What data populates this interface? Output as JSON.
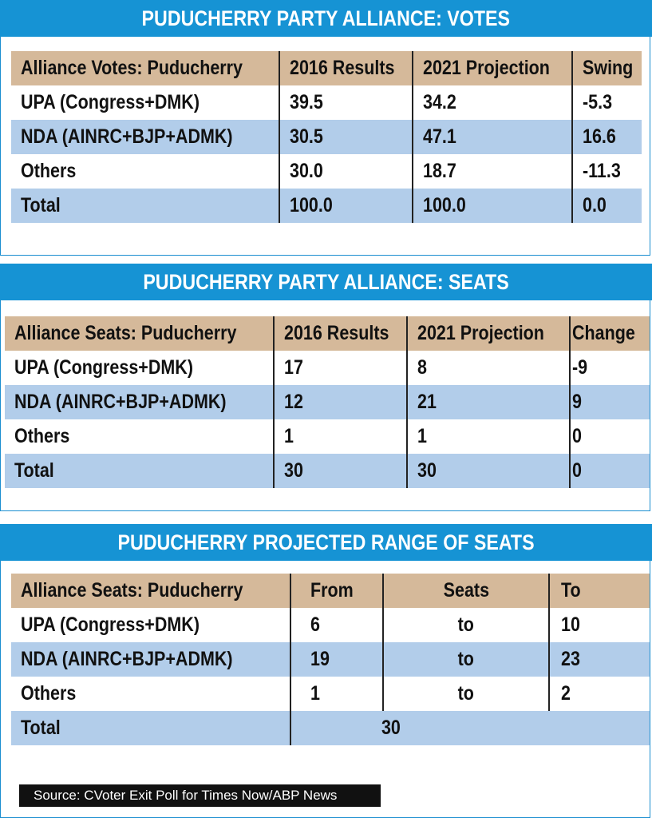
{
  "votes": {
    "title": "PUDUCHERRY PARTY ALLIANCE: VOTES",
    "headers": [
      "Alliance Votes: Puducherry",
      "2016 Results",
      "2021 Projection",
      "Swing"
    ],
    "rows": [
      [
        "UPA (Congress+DMK)",
        "39.5",
        "34.2",
        "-5.3"
      ],
      [
        "NDA (AINRC+BJP+ADMK)",
        "30.5",
        "47.1",
        "16.6"
      ],
      [
        "Others",
        "30.0",
        "18.7",
        "-11.3"
      ],
      [
        "Total",
        "100.0",
        "100.0",
        "0.0"
      ]
    ]
  },
  "seats": {
    "title": "PUDUCHERRY PARTY ALLIANCE: SEATS",
    "headers": [
      "Alliance Seats: Puducherry",
      "2016 Results",
      "2021 Projection",
      "Change"
    ],
    "rows": [
      [
        "UPA (Congress+DMK)",
        "17",
        "8",
        "-9"
      ],
      [
        "NDA (AINRC+BJP+ADMK)",
        "12",
        "21",
        "9"
      ],
      [
        "Others",
        "1",
        "1",
        "0"
      ],
      [
        "Total",
        "30",
        "30",
        "0"
      ]
    ]
  },
  "range": {
    "title": "PUDUCHERRY PROJECTED RANGE OF SEATS",
    "headers": [
      "Alliance Seats: Puducherry",
      "From",
      "Seats",
      "To"
    ],
    "rows": [
      [
        "UPA (Congress+DMK)",
        "6",
        "to",
        "10"
      ],
      [
        "NDA (AINRC+BJP+ADMK)",
        "19",
        "to",
        "23"
      ],
      [
        "Others",
        "1",
        "to",
        "2"
      ]
    ],
    "total": [
      "Total",
      "30"
    ]
  },
  "source": "Source: CVoter Exit Poll for Times Now/ABP News",
  "colors": {
    "banner": "#1693d4",
    "header_row": "#d5b99a",
    "blue_row": "#b2cdea",
    "source_bg": "#111111"
  }
}
